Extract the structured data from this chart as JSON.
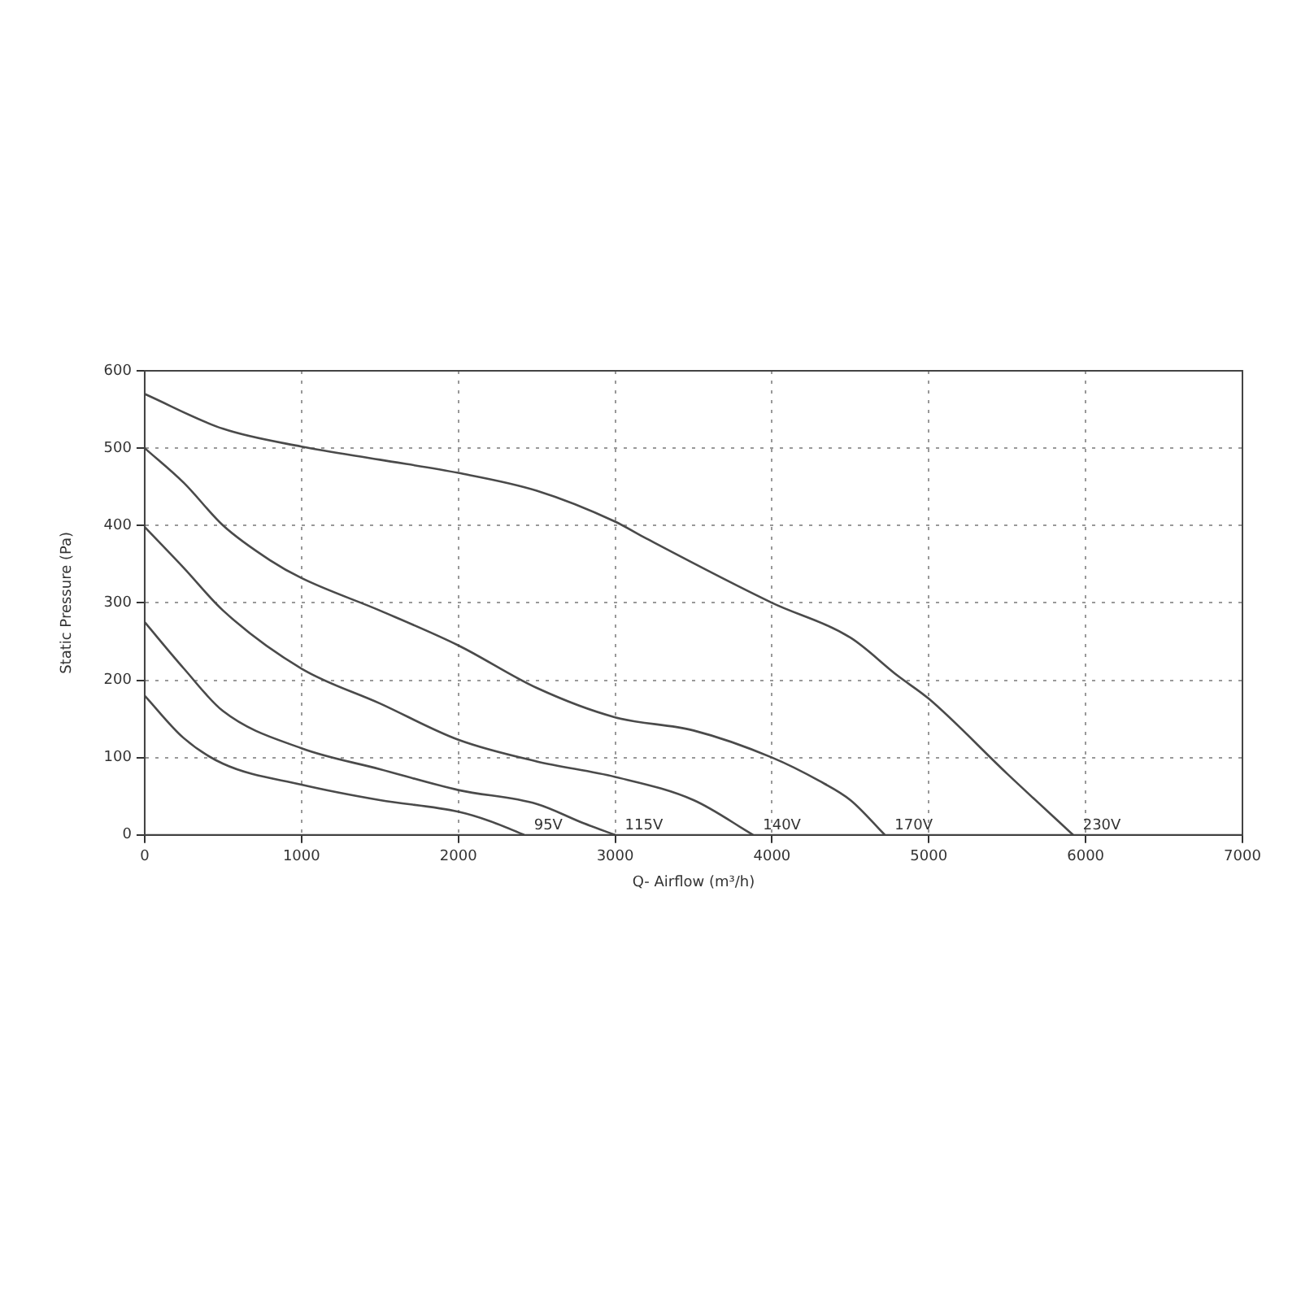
{
  "chart_data": {
    "type": "line",
    "xlabel": "Q- Airflow (m³/h)",
    "ylabel": "Static Pressure (Pa)",
    "xlim": [
      0,
      7000
    ],
    "xticks": [
      0,
      1000,
      2000,
      3000,
      4000,
      5000,
      6000,
      7000
    ],
    "ylim": [
      0,
      600
    ],
    "yticks": [
      0,
      100,
      200,
      300,
      400,
      500,
      600
    ],
    "grid": true,
    "legend": false,
    "marker": "none",
    "line_style": "solid",
    "series": [
      {
        "name": "95V",
        "color": "#4a4a4a",
        "x": [
          0,
          250,
          500,
          1000,
          1500,
          2000,
          2200,
          2420
        ],
        "values": [
          180,
          125,
          92,
          65,
          45,
          30,
          18,
          0
        ]
      },
      {
        "name": "115V",
        "color": "#4a4a4a",
        "x": [
          0,
          250,
          500,
          1000,
          1500,
          2000,
          2500,
          2800,
          3000
        ],
        "values": [
          275,
          215,
          160,
          112,
          85,
          58,
          40,
          15,
          0
        ]
      },
      {
        "name": "140V",
        "color": "#4a4a4a",
        "x": [
          0,
          250,
          500,
          1000,
          1500,
          2000,
          2500,
          3000,
          3500,
          3880
        ],
        "values": [
          398,
          345,
          290,
          215,
          170,
          123,
          95,
          75,
          45,
          0
        ]
      },
      {
        "name": "170V",
        "color": "#4a4a4a",
        "x": [
          0,
          250,
          500,
          800,
          1000,
          1500,
          2000,
          2500,
          3000,
          3500,
          4000,
          4300,
          4500,
          4720
        ],
        "values": [
          500,
          455,
          400,
          355,
          332,
          290,
          245,
          190,
          152,
          135,
          100,
          70,
          45,
          0
        ]
      },
      {
        "name": "230V",
        "color": "#4a4a4a",
        "x": [
          0,
          500,
          1000,
          1500,
          2000,
          2500,
          3000,
          3200,
          4000,
          4500,
          4800,
          5000,
          5500,
          5920
        ],
        "values": [
          570,
          525,
          502,
          485,
          468,
          445,
          405,
          383,
          300,
          255,
          206,
          176,
          79,
          0
        ]
      }
    ]
  }
}
